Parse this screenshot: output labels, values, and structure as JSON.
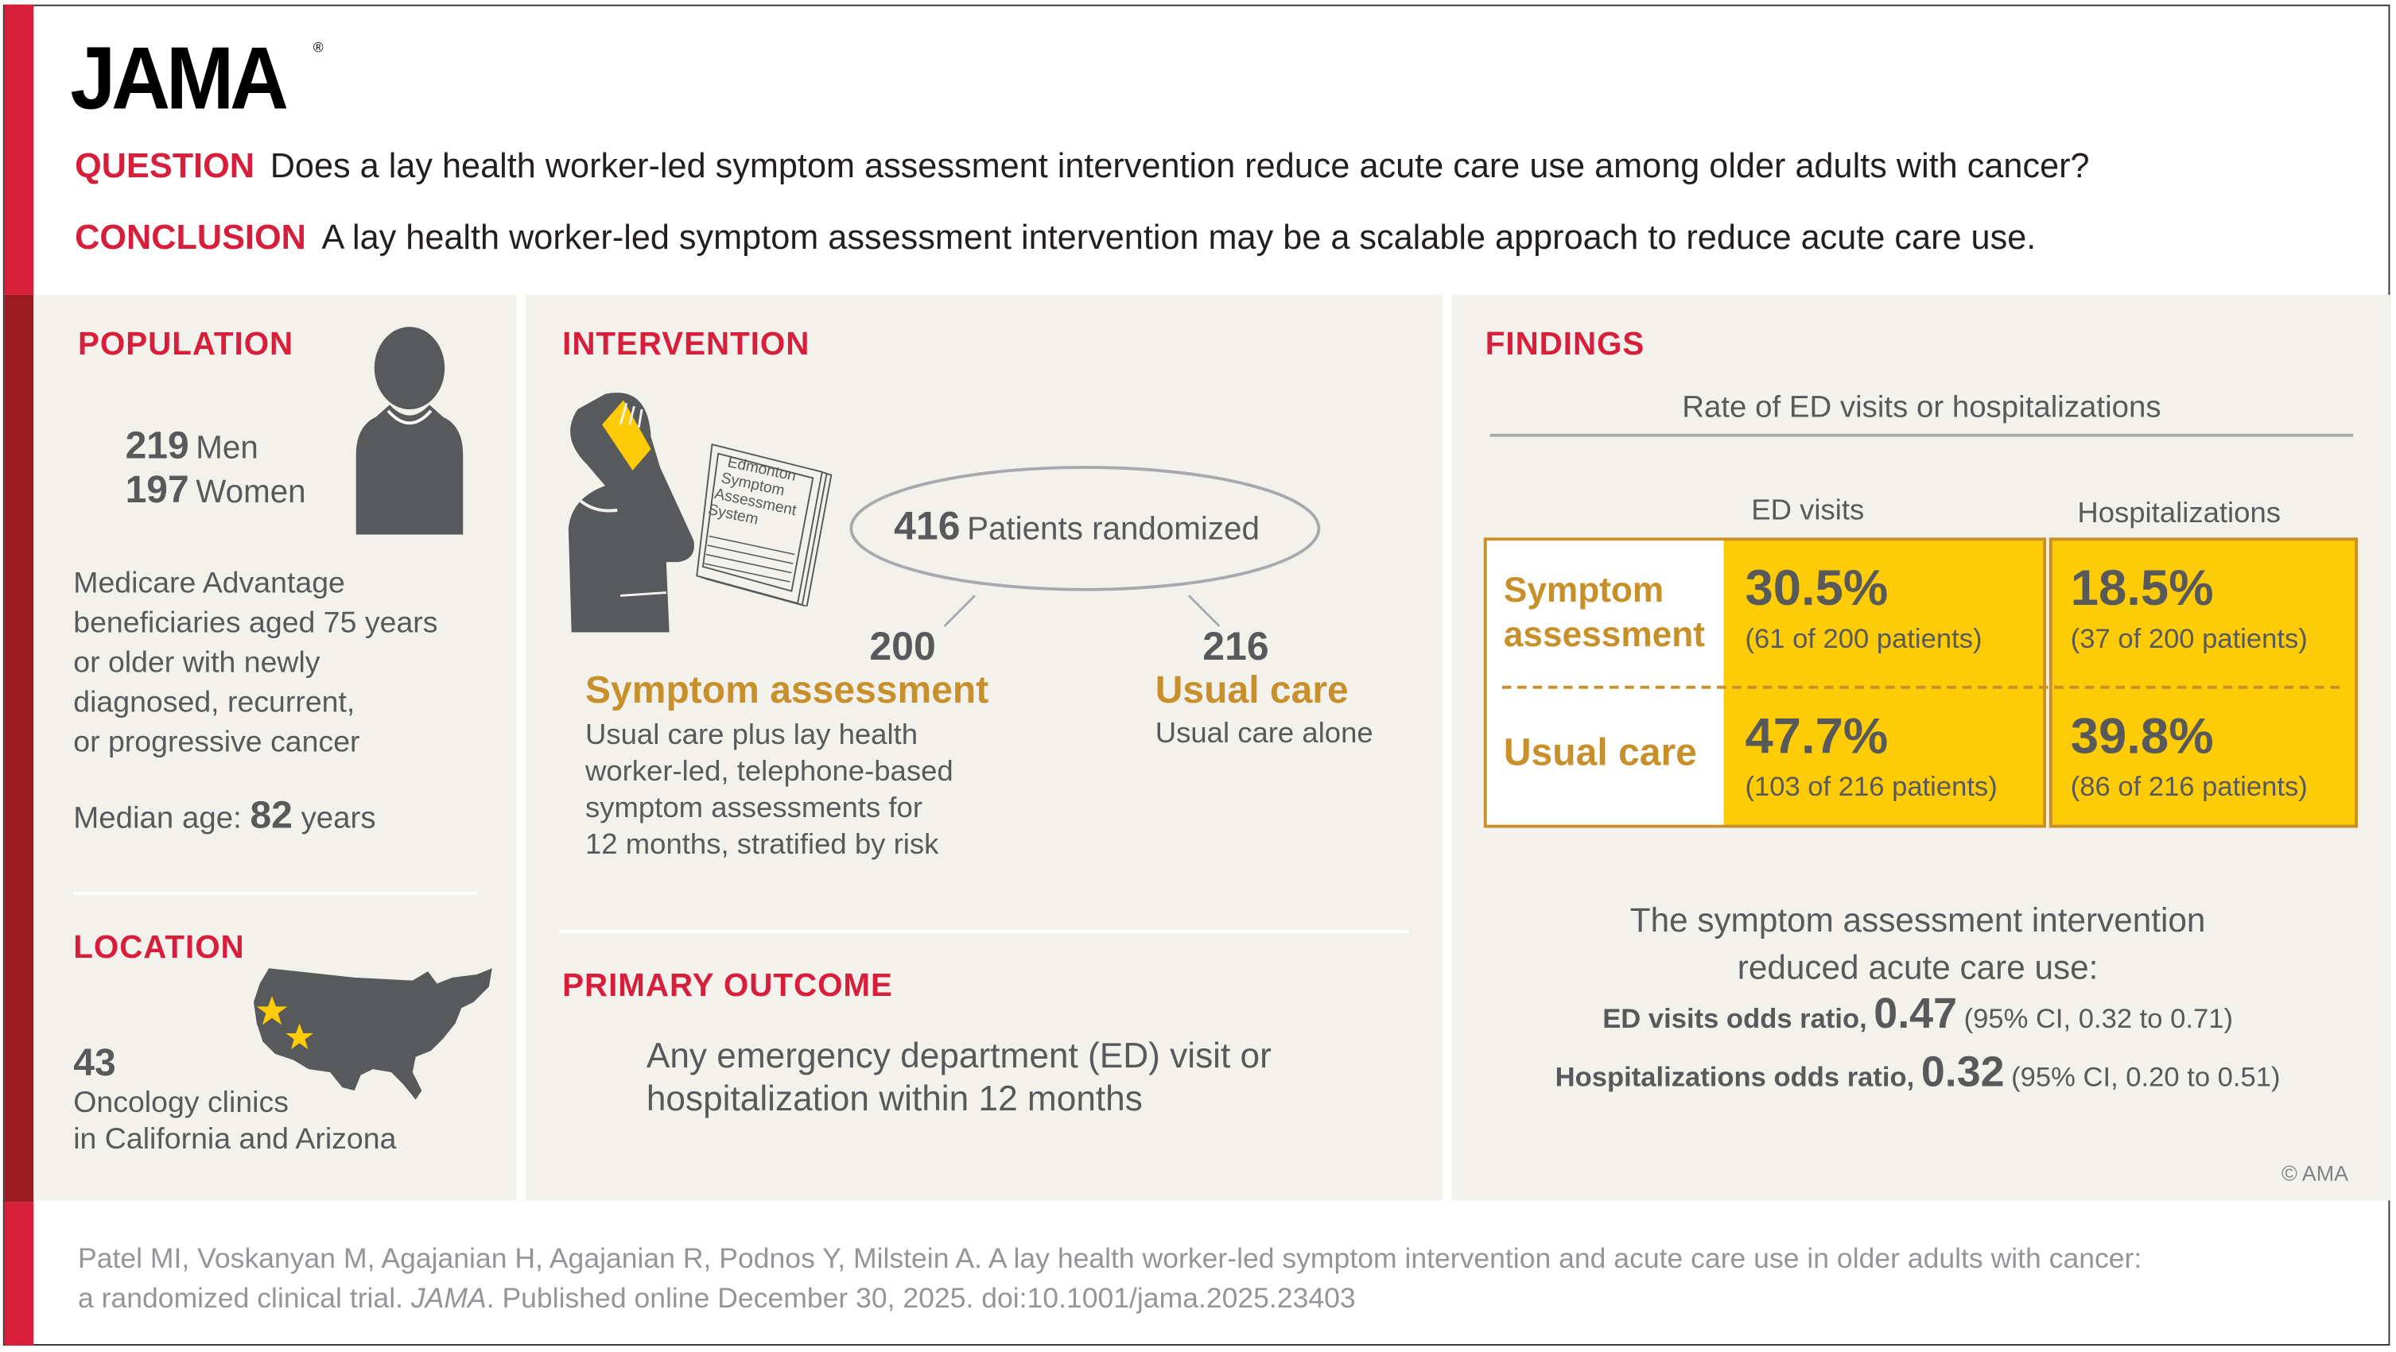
{
  "header": {
    "logo": "JAMA",
    "question_label": "QUESTION",
    "question_text": "Does a lay health worker-led symptom assessment intervention reduce acute care use among older adults with cancer?",
    "conclusion_label": "CONCLUSION",
    "conclusion_text": "A lay health worker-led symptom assessment intervention may be a scalable approach to reduce acute care use."
  },
  "population": {
    "title": "POPULATION",
    "men_count": "219",
    "men_label": "Men",
    "women_count": "197",
    "women_label": "Women",
    "description": [
      "Medicare Advantage",
      "beneficiaries aged 75 years",
      "or older with newly",
      "diagnosed, recurrent,",
      "or progressive cancer"
    ],
    "median_label": "Median age:",
    "median_value": "82",
    "median_unit": "years"
  },
  "location": {
    "title": "LOCATION",
    "count": "43",
    "line1": "Oncology clinics",
    "line2": "in California and Arizona"
  },
  "intervention": {
    "title": "INTERVENTION",
    "document_text": [
      "Edmonton",
      "Symptom",
      "Assessment",
      "System"
    ],
    "randomized_count": "416",
    "randomized_label": "Patients randomized",
    "arm1_count": "200",
    "arm1_name": "Symptom assessment",
    "arm1_desc": [
      "Usual care plus lay health",
      "worker-led, telephone-based",
      "symptom assessments for",
      "12 months, stratified by risk"
    ],
    "arm2_count": "216",
    "arm2_name": "Usual care",
    "arm2_desc": "Usual care alone"
  },
  "primary_outcome": {
    "title": "PRIMARY OUTCOME",
    "text": [
      "Any emergency department (ED) visit or",
      "hospitalization within 12 months"
    ]
  },
  "findings": {
    "title": "FINDINGS",
    "subtitle": "Rate of ED visits or hospitalizations",
    "columns": [
      "ED visits",
      "Hospitalizations"
    ],
    "rows": [
      {
        "label": [
          "Symptom",
          "assessment"
        ],
        "ed_pct": "30.5%",
        "ed_n": "(61 of 200 patients)",
        "hosp_pct": "18.5%",
        "hosp_n": "(37 of 200 patients)"
      },
      {
        "label": [
          "Usual care"
        ],
        "ed_pct": "47.7%",
        "ed_n": "(103 of 216 patients)",
        "hosp_pct": "39.8%",
        "hosp_n": "(86 of 216 patients)"
      }
    ],
    "summary": [
      "The symptom assessment intervention",
      "reduced acute care use:"
    ],
    "or1_label": "ED visits odds ratio,",
    "or1_value": "0.47",
    "or1_ci": "(95% CI, 0.32 to 0.71)",
    "or2_label": "Hospitalizations odds ratio,",
    "or2_value": "0.32",
    "or2_ci": "(95% CI, 0.20 to 0.51)",
    "copyright": "© AMA"
  },
  "citation": {
    "line1": "Patel MI, Voskanyan M, Agajanian H, Agajanian R, Podnos Y, Milstein A. A lay health worker-led symptom intervention and acute care use in older adults with cancer:",
    "line2_pre": "a randomized clinical trial. ",
    "journal": "JAMA",
    "line2_post": ". Published online December 30, 2025. doi:10.1001/jama.2025.23403"
  },
  "colors": {
    "red": "#d71f3b",
    "dark_red": "#9b1b20",
    "gold": "#c8902a",
    "yellow": "#fecb07",
    "panel": "#f2f1ec",
    "text": "#58595b"
  }
}
